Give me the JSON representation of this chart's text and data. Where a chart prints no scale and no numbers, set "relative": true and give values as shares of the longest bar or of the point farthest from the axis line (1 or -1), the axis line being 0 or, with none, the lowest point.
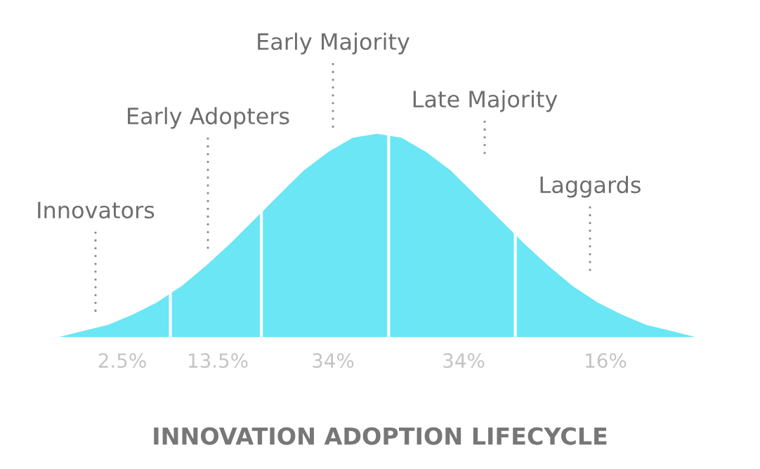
{
  "chart_data": {
    "type": "area",
    "relative": true,
    "title": "INNOVATION ADOPTION LIFECYCLE",
    "categories": [
      null,
      null,
      null,
      null,
      null,
      null,
      null,
      null,
      null,
      null,
      null,
      null,
      null,
      null,
      null,
      null,
      null,
      null,
      null,
      null,
      null,
      null,
      null,
      null,
      null,
      null,
      null
    ],
    "series": [
      {
        "color": "#6ae6f5",
        "values": [
          0,
          0.03,
          0.06,
          0.11,
          0.17,
          0.25,
          0.35,
          0.46,
          0.58,
          0.7,
          0.82,
          0.91,
          0.98,
          1,
          0.98,
          0.91,
          0.82,
          0.7,
          0.58,
          0.46,
          0.35,
          0.25,
          0.17,
          0.11,
          0.06,
          0.03,
          0
        ]
      }
    ],
    "annotations": [
      "Innovators",
      "Early Adopters",
      "Early Majority",
      "Late Majority",
      "Laggards",
      "2.5%",
      "13.5%",
      "34%",
      "34%",
      "16%"
    ]
  }
}
